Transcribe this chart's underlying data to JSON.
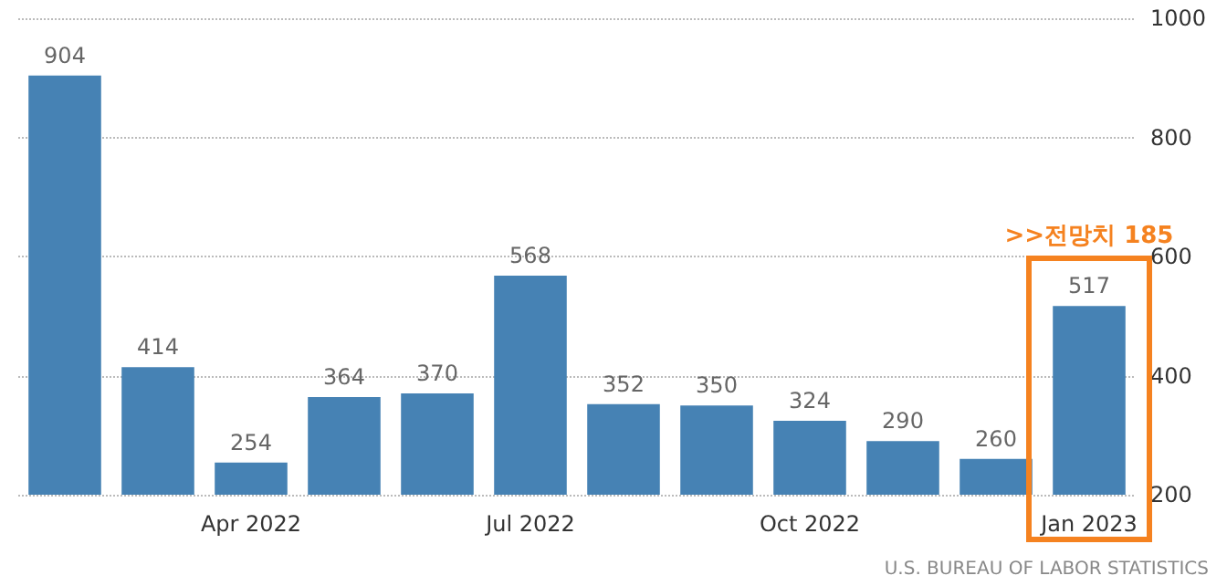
{
  "chart_data": {
    "type": "bar",
    "categories": [
      null,
      null,
      "Apr 2022",
      null,
      null,
      "Jul 2022",
      null,
      null,
      "Oct 2022",
      null,
      null,
      "Jan 2023"
    ],
    "values": [
      904,
      414,
      254,
      364,
      370,
      568,
      352,
      350,
      324,
      290,
      260,
      517
    ],
    "color": "#4682b4",
    "ylim": [
      200,
      1000
    ],
    "yticks": [
      200,
      400,
      600,
      800,
      {
        "value": 1000,
        "label": "1000"
      }
    ],
    "grid": "y",
    "data_labels": true,
    "annotations": [
      {
        "text": ">>전망치 185",
        "x": "Jan 2023",
        "y": 517
      },
      "U.S. BUREAU OF LABOR STATISTICS"
    ]
  }
}
